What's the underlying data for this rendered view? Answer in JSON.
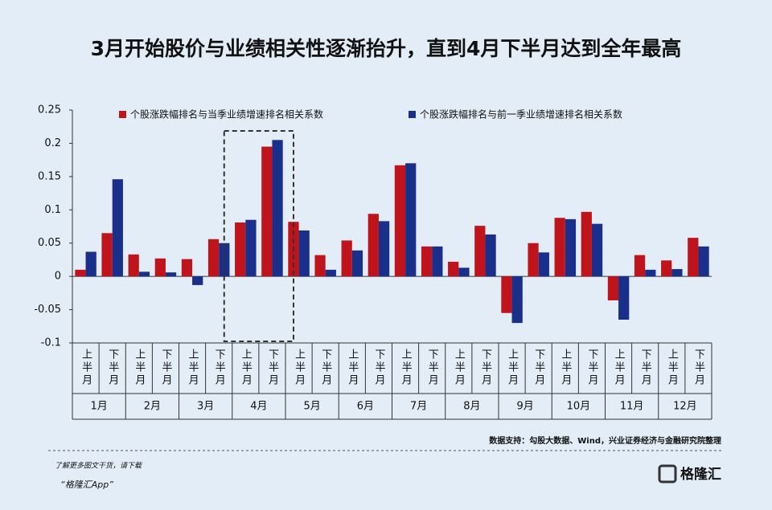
{
  "chart_data": {
    "type": "bar",
    "title": "3月开始股价与业绩相关性逐渐抬升，直到4月下半月达到全年最高",
    "categories": [
      "上半月",
      "下半月",
      "上半月",
      "下半月",
      "上半月",
      "下半月",
      "上半月",
      "下半月",
      "上半月",
      "下半月",
      "上半月",
      "下半月",
      "上半月",
      "下半月",
      "上半月",
      "下半月",
      "上半月",
      "下半月",
      "上半月",
      "下半月",
      "上半月",
      "下半月",
      "上半月",
      "下半月"
    ],
    "groups": [
      "1月",
      "2月",
      "3月",
      "4月",
      "5月",
      "6月",
      "7月",
      "8月",
      "9月",
      "10月",
      "11月",
      "12月"
    ],
    "series": [
      {
        "name": "个股涨跌幅排名与当季业绩增速排名相关系数",
        "color": "#c0141c",
        "values": [
          0.01,
          0.065,
          0.033,
          0.027,
          0.026,
          0.056,
          0.081,
          0.195,
          0.082,
          0.032,
          0.054,
          0.094,
          0.167,
          0.045,
          0.022,
          0.076,
          -0.055,
          0.05,
          0.088,
          0.097,
          -0.036,
          0.032,
          0.024,
          0.058
        ]
      },
      {
        "name": "个股涨跌幅排名与前一季业绩增速排名相关系数",
        "color": "#1a2f8a",
        "values": [
          0.037,
          0.146,
          0.007,
          0.006,
          -0.013,
          0.05,
          0.085,
          0.205,
          0.069,
          0.01,
          0.039,
          0.083,
          0.17,
          0.045,
          0.013,
          0.063,
          -0.07,
          0.036,
          0.086,
          0.079,
          -0.065,
          0.01,
          0.011,
          0.045
        ]
      }
    ],
    "ylim": [
      -0.1,
      0.25
    ],
    "yticks": [
      0.25,
      0.2,
      0.15,
      0.1,
      0.05,
      0,
      -0.05,
      -0.1
    ],
    "source": "数据支持：勾股大数据、Wind，兴业证券经济与金融研究院整理"
  },
  "footer": {
    "note": "了解更多图文干货，请下载",
    "app": "“格隆汇App”",
    "logo": "格隆汇"
  }
}
